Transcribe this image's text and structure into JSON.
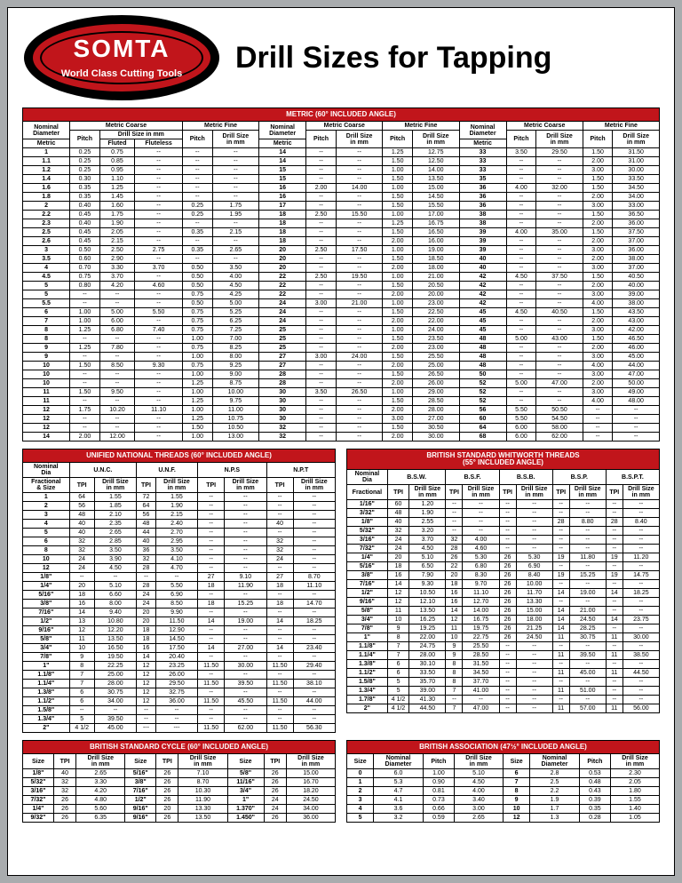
{
  "logo": {
    "brand": "SOMTA",
    "tagline": "World Class Cutting Tools"
  },
  "title": "Drill Sizes for Tapping",
  "colors": {
    "red": "#c1151b",
    "page_bg": "#a9acae"
  },
  "metric_title": "METRIC (60° INCLUDED ANGLE)",
  "metric_headers": {
    "nominal": "Nominal\nDiameter",
    "mc": "Metric Coarse",
    "mf": "Metric Fine",
    "metric": "Metric",
    "pitch": "Pitch",
    "dsmm": "Drill Size in mm",
    "fluted": "Fluted",
    "fluteless": "Fluteless",
    "ds": "Drill Size\nin mm"
  },
  "metric_left": [
    [
      "1",
      "0.25",
      "0.75",
      "--",
      "--",
      "--"
    ],
    [
      "1.1",
      "0.25",
      "0.85",
      "--",
      "--",
      "--"
    ],
    [
      "1.2",
      "0.25",
      "0.95",
      "--",
      "--",
      "--"
    ],
    [
      "1.4",
      "0.30",
      "1.10",
      "--",
      "--",
      "--"
    ],
    [
      "1.6",
      "0.35",
      "1.25",
      "--",
      "--",
      "--"
    ],
    [
      "1.8",
      "0.35",
      "1.45",
      "--",
      "--",
      "--"
    ],
    [
      "2",
      "0.40",
      "1.60",
      "--",
      "0.25",
      "1.75"
    ],
    [
      "2.2",
      "0.45",
      "1.75",
      "--",
      "0.25",
      "1.95"
    ],
    [
      "2.3",
      "0.40",
      "1.90",
      "--",
      "--",
      "--"
    ],
    [
      "2.5",
      "0.45",
      "2.05",
      "--",
      "0.35",
      "2.15"
    ],
    [
      "2.6",
      "0.45",
      "2.15",
      "--",
      "--",
      "--"
    ],
    [
      "3",
      "0.50",
      "2.50",
      "2.75",
      "0.35",
      "2.65"
    ],
    [
      "3.5",
      "0.60",
      "2.90",
      "--",
      "--",
      "--"
    ],
    [
      "4",
      "0.70",
      "3.30",
      "3.70",
      "0.50",
      "3.50"
    ],
    [
      "4.5",
      "0.75",
      "3.70",
      "--",
      "0.50",
      "4.00"
    ],
    [
      "5",
      "0.80",
      "4.20",
      "4.60",
      "0.50",
      "4.50"
    ],
    [
      "5",
      "--",
      "--",
      "--",
      "0.75",
      "4.25"
    ],
    [
      "5.5",
      "--",
      "--",
      "--",
      "0.50",
      "5.00"
    ],
    [
      "6",
      "1.00",
      "5.00",
      "5.50",
      "0.75",
      "5.25"
    ],
    [
      "7",
      "1.00",
      "6.00",
      "--",
      "0.75",
      "6.25"
    ],
    [
      "8",
      "1.25",
      "6.80",
      "7.40",
      "0.75",
      "7.25"
    ],
    [
      "8",
      "--",
      "--",
      "--",
      "1.00",
      "7.00"
    ],
    [
      "9",
      "1.25",
      "7.80",
      "--",
      "0.75",
      "8.25"
    ],
    [
      "9",
      "--",
      "--",
      "--",
      "1.00",
      "8.00"
    ],
    [
      "10",
      "1.50",
      "8.50",
      "9.30",
      "0.75",
      "9.25"
    ],
    [
      "10",
      "--",
      "--",
      "--",
      "1.00",
      "9.00"
    ],
    [
      "10",
      "--",
      "--",
      "--",
      "1.25",
      "8.75"
    ],
    [
      "11",
      "1.50",
      "9.50",
      "--",
      "1.00",
      "10.00"
    ],
    [
      "11",
      "--",
      "--",
      "--",
      "1.25",
      "9.75"
    ],
    [
      "12",
      "1.75",
      "10.20",
      "11.10",
      "1.00",
      "11.00"
    ],
    [
      "12",
      "--",
      "--",
      "--",
      "1.25",
      "10.75"
    ],
    [
      "12",
      "--",
      "--",
      "--",
      "1.50",
      "10.50"
    ],
    [
      "14",
      "2.00",
      "12.00",
      "--",
      "1.00",
      "13.00"
    ]
  ],
  "metric_mid": [
    [
      "14",
      "--",
      "--",
      "1.25",
      "12.75"
    ],
    [
      "14",
      "--",
      "--",
      "1.50",
      "12.50"
    ],
    [
      "15",
      "--",
      "--",
      "1.00",
      "14.00"
    ],
    [
      "15",
      "--",
      "--",
      "1.50",
      "13.50"
    ],
    [
      "16",
      "2.00",
      "14.00",
      "1.00",
      "15.00"
    ],
    [
      "16",
      "--",
      "--",
      "1.50",
      "14.50"
    ],
    [
      "17",
      "--",
      "--",
      "1.50",
      "15.50"
    ],
    [
      "18",
      "2.50",
      "15.50",
      "1.00",
      "17.00"
    ],
    [
      "18",
      "--",
      "--",
      "1.25",
      "16.75"
    ],
    [
      "18",
      "--",
      "--",
      "1.50",
      "16.50"
    ],
    [
      "18",
      "--",
      "--",
      "2.00",
      "16.00"
    ],
    [
      "20",
      "2.50",
      "17.50",
      "1.00",
      "19.00"
    ],
    [
      "20",
      "--",
      "--",
      "1.50",
      "18.50"
    ],
    [
      "20",
      "--",
      "--",
      "2.00",
      "18.00"
    ],
    [
      "22",
      "2.50",
      "19.50",
      "1.00",
      "21.00"
    ],
    [
      "22",
      "--",
      "--",
      "1.50",
      "20.50"
    ],
    [
      "22",
      "--",
      "--",
      "2.00",
      "20.00"
    ],
    [
      "24",
      "3.00",
      "21.00",
      "1.00",
      "23.00"
    ],
    [
      "24",
      "--",
      "--",
      "1.50",
      "22.50"
    ],
    [
      "24",
      "--",
      "--",
      "2.00",
      "22.00"
    ],
    [
      "25",
      "--",
      "--",
      "1.00",
      "24.00"
    ],
    [
      "25",
      "--",
      "--",
      "1.50",
      "23.50"
    ],
    [
      "25",
      "--",
      "--",
      "2.00",
      "23.00"
    ],
    [
      "27",
      "3.00",
      "24.00",
      "1.50",
      "25.50"
    ],
    [
      "27",
      "--",
      "--",
      "2.00",
      "25.00"
    ],
    [
      "28",
      "--",
      "--",
      "1.50",
      "26.50"
    ],
    [
      "28",
      "--",
      "--",
      "2.00",
      "26.00"
    ],
    [
      "30",
      "3.50",
      "26.50",
      "1.00",
      "29.00"
    ],
    [
      "30",
      "--",
      "--",
      "1.50",
      "28.50"
    ],
    [
      "30",
      "--",
      "--",
      "2.00",
      "28.00"
    ],
    [
      "30",
      "--",
      "--",
      "3.00",
      "27.00"
    ],
    [
      "32",
      "--",
      "--",
      "1.50",
      "30.50"
    ],
    [
      "32",
      "--",
      "--",
      "2.00",
      "30.00"
    ]
  ],
  "metric_right": [
    [
      "33",
      "3.50",
      "29.50",
      "1.50",
      "31.50"
    ],
    [
      "33",
      "--",
      "--",
      "2.00",
      "31.00"
    ],
    [
      "33",
      "--",
      "--",
      "3.00",
      "30.00"
    ],
    [
      "35",
      "--",
      "--",
      "1.50",
      "33.50"
    ],
    [
      "36",
      "4.00",
      "32.00",
      "1.50",
      "34.50"
    ],
    [
      "36",
      "--",
      "--",
      "2.00",
      "34.00"
    ],
    [
      "36",
      "--",
      "--",
      "3.00",
      "33.00"
    ],
    [
      "38",
      "--",
      "--",
      "1.50",
      "36.50"
    ],
    [
      "38",
      "--",
      "--",
      "2.00",
      "36.00"
    ],
    [
      "39",
      "4.00",
      "35.00",
      "1.50",
      "37.50"
    ],
    [
      "39",
      "--",
      "--",
      "2.00",
      "37.00"
    ],
    [
      "39",
      "--",
      "--",
      "3.00",
      "36.00"
    ],
    [
      "40",
      "--",
      "--",
      "2.00",
      "38.00"
    ],
    [
      "40",
      "--",
      "--",
      "3.00",
      "37.00"
    ],
    [
      "42",
      "4.50",
      "37.50",
      "1.50",
      "40.50"
    ],
    [
      "42",
      "--",
      "--",
      "2.00",
      "40.00"
    ],
    [
      "42",
      "--",
      "--",
      "3.00",
      "39.00"
    ],
    [
      "42",
      "--",
      "--",
      "4.00",
      "38.00"
    ],
    [
      "45",
      "4.50",
      "40.50",
      "1.50",
      "43.50"
    ],
    [
      "45",
      "--",
      "--",
      "2.00",
      "43.00"
    ],
    [
      "45",
      "--",
      "--",
      "3.00",
      "42.00"
    ],
    [
      "48",
      "5.00",
      "43.00",
      "1.50",
      "46.50"
    ],
    [
      "48",
      "--",
      "--",
      "2.00",
      "46.00"
    ],
    [
      "48",
      "--",
      "--",
      "3.00",
      "45.00"
    ],
    [
      "48",
      "--",
      "--",
      "4.00",
      "44.00"
    ],
    [
      "50",
      "--",
      "--",
      "3.00",
      "47.00"
    ],
    [
      "52",
      "5.00",
      "47.00",
      "2.00",
      "50.00"
    ],
    [
      "52",
      "--",
      "--",
      "3.00",
      "49.00"
    ],
    [
      "52",
      "--",
      "--",
      "4.00",
      "48.00"
    ],
    [
      "56",
      "5.50",
      "50.50",
      "--",
      "--"
    ],
    [
      "60",
      "5.50",
      "54.50",
      "--",
      "--"
    ],
    [
      "64",
      "6.00",
      "58.00",
      "--",
      "--"
    ],
    [
      "68",
      "6.00",
      "62.00",
      "--",
      "--"
    ]
  ],
  "unified_title": "UNIFIED NATIONAL THREADS (60° INCLUDED ANGLE)",
  "unified_headers": {
    "nd": "Nominal\nDia",
    "fs": "Fractional\n& Size",
    "unc": "U.N.C.",
    "unf": "U.N.F.",
    "nps": "N.P.S",
    "npt": "N.P.T",
    "tpi": "TPI",
    "ds": "Drill Size\nin mm"
  },
  "unified_rows": [
    [
      "1",
      "64",
      "1.55",
      "72",
      "1.55",
      "--",
      "--",
      "--",
      "--"
    ],
    [
      "2",
      "56",
      "1.85",
      "64",
      "1.90",
      "--",
      "--",
      "--",
      "--"
    ],
    [
      "3",
      "48",
      "2.10",
      "56",
      "2.15",
      "--",
      "--",
      "--",
      "--"
    ],
    [
      "4",
      "40",
      "2.35",
      "48",
      "2.40",
      "--",
      "--",
      "40",
      "--"
    ],
    [
      "5",
      "40",
      "2.65",
      "44",
      "2.70",
      "--",
      "--",
      "--",
      "--"
    ],
    [
      "6",
      "32",
      "2.85",
      "40",
      "2.95",
      "--",
      "--",
      "32",
      "--"
    ],
    [
      "8",
      "32",
      "3.50",
      "36",
      "3.50",
      "--",
      "--",
      "32",
      "--"
    ],
    [
      "10",
      "24",
      "3.90",
      "32",
      "4.10",
      "--",
      "--",
      "24",
      "--"
    ],
    [
      "12",
      "24",
      "4.50",
      "28",
      "4.70",
      "--",
      "--",
      "--",
      "--"
    ],
    [
      "1/8\"",
      "--",
      "--",
      "--",
      "--",
      "27",
      "9.10",
      "27",
      "8.70"
    ],
    [
      "1/4\"",
      "20",
      "5.10",
      "28",
      "5.50",
      "18",
      "11.90",
      "18",
      "11.10"
    ],
    [
      "5/16\"",
      "18",
      "6.60",
      "24",
      "6.90",
      "--",
      "--",
      "--",
      "--"
    ],
    [
      "3/8\"",
      "16",
      "8.00",
      "24",
      "8.50",
      "18",
      "15.25",
      "18",
      "14.70"
    ],
    [
      "7/16\"",
      "14",
      "9.40",
      "20",
      "9.90",
      "--",
      "--",
      "--",
      "--"
    ],
    [
      "1/2\"",
      "13",
      "10.80",
      "20",
      "11.50",
      "14",
      "19.00",
      "14",
      "18.25"
    ],
    [
      "9/16\"",
      "12",
      "12.20",
      "18",
      "12.90",
      "--",
      "--",
      "--",
      "--"
    ],
    [
      "5/8\"",
      "11",
      "13.50",
      "18",
      "14.50",
      "--",
      "--",
      "--",
      "--"
    ],
    [
      "3/4\"",
      "10",
      "16.50",
      "16",
      "17.50",
      "14",
      "27.00",
      "14",
      "23.40"
    ],
    [
      "7/8\"",
      "9",
      "19.50",
      "14",
      "20.40",
      "--",
      "--",
      "--",
      "--"
    ],
    [
      "1\"",
      "8",
      "22.25",
      "12",
      "23.25",
      "11.50",
      "30.00",
      "11.50",
      "29.40"
    ],
    [
      "1.1/8\"",
      "7",
      "25.00",
      "12",
      "26.00",
      "--",
      "--",
      "--",
      "--"
    ],
    [
      "1.1/4\"",
      "7",
      "28.00",
      "12",
      "29.50",
      "11.50",
      "39.50",
      "11.50",
      "38.10"
    ],
    [
      "1.3/8\"",
      "6",
      "30.75",
      "12",
      "32.75",
      "--",
      "--",
      "--",
      "--"
    ],
    [
      "1.1/2\"",
      "6",
      "34.00",
      "12",
      "36.00",
      "11.50",
      "45.50",
      "11.50",
      "44.00"
    ],
    [
      "1.5/8\"",
      "--",
      "--",
      "--",
      "--",
      "--",
      "--",
      "--",
      "--"
    ],
    [
      "1.3/4\"",
      "5",
      "39.50",
      "--",
      "--",
      "--",
      "--",
      "--",
      "--"
    ],
    [
      "2\"",
      "4 1/2",
      "45.00",
      "---",
      "---",
      "11.50",
      "62.00",
      "11.50",
      "56.30"
    ]
  ],
  "whitworth_title": "BRITISH STANDARD WHITWORTH THREADS\n(55° INCLUDED ANGLE)",
  "whitworth_headers": {
    "nd": "Nominal\nDia",
    "frac": "Fractional",
    "bsw": "B.S.W.",
    "bsf": "B.S.F.",
    "bsb": "B.S.B.",
    "bsp": "B.S.P.",
    "bspt": "B.S.P.T.",
    "tpi": "TPI",
    "ds": "Drill Size\nin mm"
  },
  "whitworth_rows": [
    [
      "1/16\"",
      "60",
      "1.20",
      "--",
      "--",
      "--",
      "--",
      "--",
      "--",
      "--",
      "--"
    ],
    [
      "3/32\"",
      "48",
      "1.90",
      "--",
      "--",
      "--",
      "--",
      "--",
      "--",
      "--",
      "--"
    ],
    [
      "1/8\"",
      "40",
      "2.55",
      "--",
      "--",
      "--",
      "--",
      "28",
      "8.80",
      "28",
      "8.40"
    ],
    [
      "5/32\"",
      "32",
      "3.20",
      "--",
      "--",
      "--",
      "--",
      "--",
      "--",
      "--",
      "--"
    ],
    [
      "3/16\"",
      "24",
      "3.70",
      "32",
      "4.00",
      "--",
      "--",
      "--",
      "--",
      "--",
      "--"
    ],
    [
      "7/32\"",
      "24",
      "4.50",
      "28",
      "4.60",
      "--",
      "--",
      "--",
      "--",
      "--",
      "--"
    ],
    [
      "1/4\"",
      "20",
      "5.10",
      "26",
      "5.30",
      "26",
      "5.30",
      "19",
      "11.80",
      "19",
      "11.20"
    ],
    [
      "5/16\"",
      "18",
      "6.50",
      "22",
      "6.80",
      "26",
      "6.90",
      "--",
      "--",
      "--",
      "--"
    ],
    [
      "3/8\"",
      "16",
      "7.90",
      "20",
      "8.30",
      "26",
      "8.40",
      "19",
      "15.25",
      "19",
      "14.75"
    ],
    [
      "7/16\"",
      "14",
      "9.30",
      "18",
      "9.70",
      "26",
      "10.00",
      "--",
      "--",
      "--",
      "--"
    ],
    [
      "1/2\"",
      "12",
      "10.50",
      "16",
      "11.10",
      "26",
      "11.70",
      "14",
      "19.00",
      "14",
      "18.25"
    ],
    [
      "9/16\"",
      "12",
      "12.10",
      "16",
      "12.70",
      "26",
      "13.30",
      "--",
      "--",
      "--",
      "--"
    ],
    [
      "5/8\"",
      "11",
      "13.50",
      "14",
      "14.00",
      "26",
      "15.00",
      "14",
      "21.00",
      "--",
      "--"
    ],
    [
      "3/4\"",
      "10",
      "16.25",
      "12",
      "16.75",
      "26",
      "18.00",
      "14",
      "24.50",
      "14",
      "23.75"
    ],
    [
      "7/8\"",
      "9",
      "19.25",
      "11",
      "19.75",
      "26",
      "21.25",
      "14",
      "28.25",
      "--",
      "--"
    ],
    [
      "1\"",
      "8",
      "22.00",
      "10",
      "22.75",
      "26",
      "24.50",
      "11",
      "30.75",
      "11",
      "30.00"
    ],
    [
      "1.1/8\"",
      "7",
      "24.75",
      "9",
      "25.50",
      "--",
      "--",
      "--",
      "--",
      "--",
      "--"
    ],
    [
      "1.1/4\"",
      "7",
      "28.00",
      "9",
      "28.50",
      "--",
      "--",
      "11",
      "39.50",
      "11",
      "38.50"
    ],
    [
      "1.3/8\"",
      "6",
      "30.10",
      "8",
      "31.50",
      "--",
      "--",
      "--",
      "--",
      "--",
      "--"
    ],
    [
      "1.1/2\"",
      "6",
      "33.50",
      "8",
      "34.50",
      "--",
      "--",
      "11",
      "45.00",
      "11",
      "44.50"
    ],
    [
      "1.5/8\"",
      "5",
      "35.70",
      "8",
      "37.70",
      "--",
      "--",
      "--",
      "--",
      "--",
      "--"
    ],
    [
      "1.3/4\"",
      "5",
      "39.00",
      "7",
      "41.00",
      "--",
      "--",
      "11",
      "51.00",
      "--",
      "--"
    ],
    [
      "1.7/8\"",
      "4 1/2",
      "41.30",
      "--",
      "--",
      "--",
      "--",
      "--",
      "--",
      "--",
      "--"
    ],
    [
      "2\"",
      "4 1/2",
      "44.50",
      "7",
      "47.00",
      "--",
      "--",
      "11",
      "57.00",
      "11",
      "56.00"
    ]
  ],
  "cycle_title": "BRITISH STANDARD  CYCLE (60° INCLUDED ANGLE)",
  "cycle_headers": {
    "size": "Size",
    "tpi": "TPI",
    "ds": "Drill Size\nin mm"
  },
  "cycle_rows": [
    [
      "1/8\"",
      "40",
      "2.65",
      "5/16\"",
      "26",
      "7.10",
      "5/8\"",
      "26",
      "15.00"
    ],
    [
      "5/32\"",
      "32",
      "3.30",
      "3/8\"",
      "26",
      "8.70",
      "11/16\"",
      "26",
      "16.70"
    ],
    [
      "3/16\"",
      "32",
      "4.20",
      "7/16\"",
      "26",
      "10.30",
      "3/4\"",
      "26",
      "18.20"
    ],
    [
      "7/32\"",
      "26",
      "4.80",
      "1/2\"",
      "26",
      "11.90",
      "1\"",
      "24",
      "24.50"
    ],
    [
      "1/4\"",
      "26",
      "5.60",
      "9/16\"",
      "20",
      "13.30",
      "1.370\"",
      "24",
      "34.00"
    ],
    [
      "9/32\"",
      "26",
      "6.35",
      "9/16\"",
      "26",
      "13.50",
      "1.450\"",
      "26",
      "36.00"
    ]
  ],
  "ba_title": "BRITISH ASSOCIATION (47½° INCLUDED ANGLE)",
  "ba_headers": {
    "size": "Size",
    "nd": "Nominal\nDiameter",
    "pitch": "Pitch",
    "ds": "Drill Size\nin mm"
  },
  "ba_rows": [
    [
      "0",
      "6.0",
      "1.00",
      "5.10",
      "6",
      "2.8",
      "0.53",
      "2.30"
    ],
    [
      "1",
      "5.3",
      "0.90",
      "4.50",
      "7",
      "2.5",
      "0.48",
      "2.05"
    ],
    [
      "2",
      "4.7",
      "0.81",
      "4.00",
      "8",
      "2.2",
      "0.43",
      "1.80"
    ],
    [
      "3",
      "4.1",
      "0.73",
      "3.40",
      "9",
      "1.9",
      "0.39",
      "1.55"
    ],
    [
      "4",
      "3.6",
      "0.66",
      "3.00",
      "10",
      "1.7",
      "0.35",
      "1.40"
    ],
    [
      "5",
      "3.2",
      "0.59",
      "2.65",
      "12",
      "1.3",
      "0.28",
      "1.05"
    ]
  ]
}
